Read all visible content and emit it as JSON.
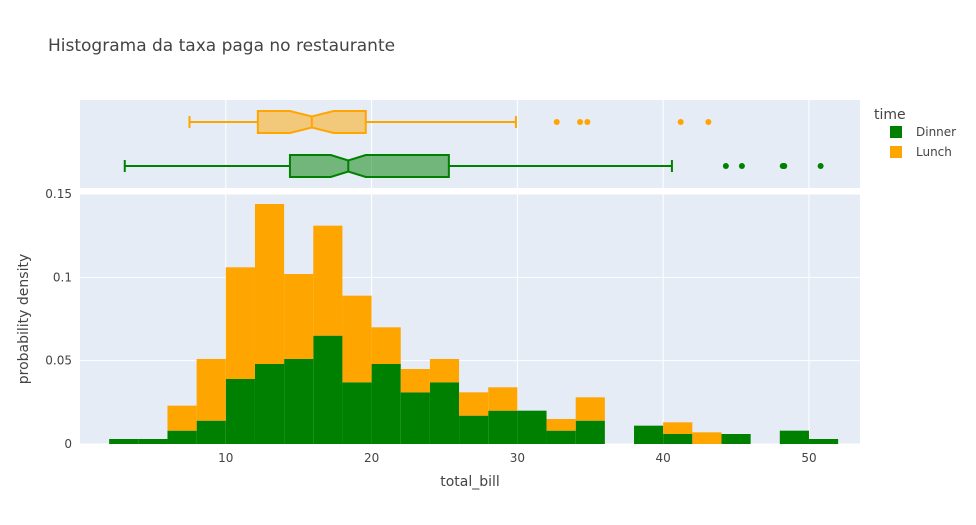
{
  "chart_data": {
    "type": "histogram",
    "title": "Histograma da taxa paga no restaurante",
    "xlabel": "total_bill",
    "ylabel": "probability density",
    "xlim": [
      0,
      53.5
    ],
    "ylim": [
      0,
      0.15
    ],
    "x_ticks": [
      10,
      20,
      30,
      40,
      50
    ],
    "y_ticks": [
      {
        "value": 0,
        "label": "0"
      },
      {
        "value": 0.05,
        "label": "0.05"
      },
      {
        "value": 0.1,
        "label": "0.1"
      },
      {
        "value": 0.15,
        "label": "0.15"
      }
    ],
    "legend": {
      "title": "time",
      "position": "top-right"
    },
    "barmode": "stack",
    "bin_size": 2,
    "bin_starts": [
      2,
      4,
      6,
      8,
      10,
      12,
      14,
      16,
      18,
      20,
      22,
      24,
      26,
      28,
      30,
      32,
      34,
      36,
      38,
      40,
      42,
      44,
      46,
      48,
      50
    ],
    "series": [
      {
        "name": "Dinner",
        "color": "#008000",
        "values": [
          0.003,
          0.003,
          0.008,
          0.014,
          0.039,
          0.048,
          0.051,
          0.065,
          0.037,
          0.048,
          0.031,
          0.037,
          0.017,
          0.02,
          0.02,
          0.008,
          0.014,
          0,
          0.011,
          0.006,
          0,
          0.006,
          0,
          0.008,
          0.003
        ]
      },
      {
        "name": "Lunch",
        "color": "#ffa500",
        "values": [
          0,
          0,
          0.015,
          0.037,
          0.067,
          0.096,
          0.051,
          0.066,
          0.052,
          0.022,
          0.014,
          0.014,
          0.014,
          0.014,
          0,
          0.007,
          0.014,
          0,
          0,
          0.007,
          0.007,
          0,
          0,
          0,
          0
        ]
      }
    ],
    "marginal_boxes": [
      {
        "name": "Lunch",
        "color": "#ffa500",
        "fill": "rgba(255,165,0,0.5)",
        "whisker_low": 7.51,
        "q1": 12.2,
        "median": 15.9,
        "q3": 19.6,
        "whisker_high": 29.9,
        "notch_low": 14.4,
        "notch_high": 17.4,
        "outliers": [
          32.7,
          34.3,
          34.8,
          41.2,
          43.1
        ]
      },
      {
        "name": "Dinner",
        "color": "#008000",
        "fill": "rgba(0,128,0,0.5)",
        "whisker_low": 3.07,
        "q1": 14.4,
        "median": 18.4,
        "q3": 25.3,
        "whisker_high": 40.6,
        "notch_low": 17.2,
        "notch_high": 19.6,
        "outliers": [
          44.3,
          45.4,
          48.2,
          48.3,
          48.3,
          50.8
        ]
      }
    ]
  }
}
